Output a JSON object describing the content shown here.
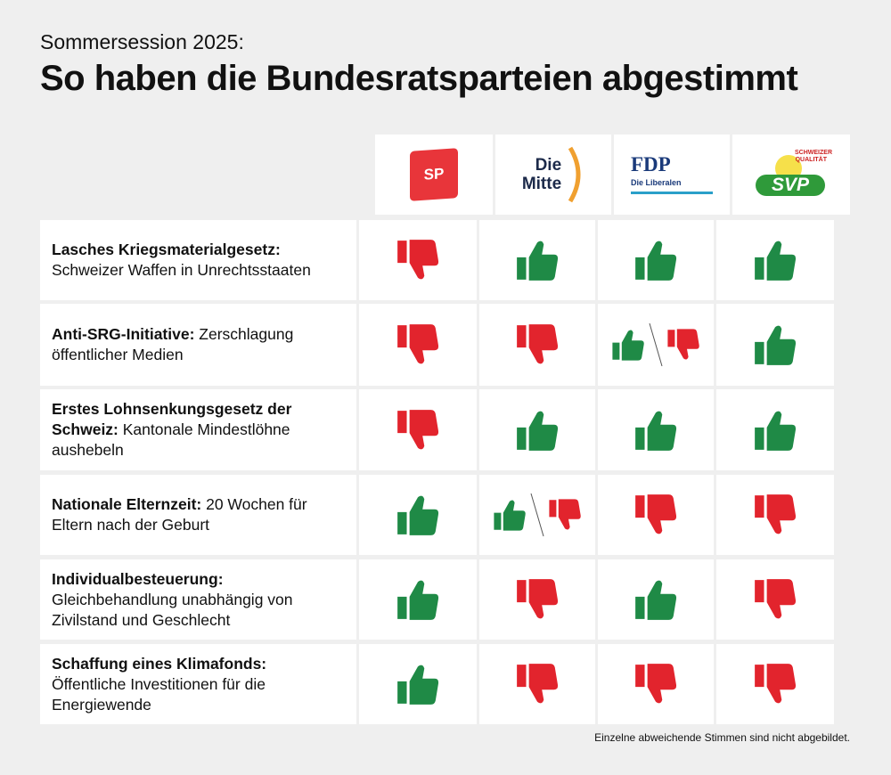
{
  "subtitle": "Sommersession 2025:",
  "title": "So haben die Bundesratsparteien abgestimmt",
  "parties": [
    {
      "name": "SP",
      "logo": "SP"
    },
    {
      "name": "Die Mitte",
      "logo_line1": "Die",
      "logo_line2": "Mitte"
    },
    {
      "name": "FDP",
      "logo": "FDP",
      "tagline": "Die Liberalen"
    },
    {
      "name": "SVP",
      "logo": "SVP",
      "tagline": "SCHWEIZER QUALITÄT"
    }
  ],
  "colors": {
    "yes": "#1f8a46",
    "no": "#e2242d",
    "sp": "#e8353a",
    "mitte_arc": "#f0a030",
    "fdp": "#1a3a7a",
    "fdp_line": "#2a9fc9",
    "svp": "#2f9a3a"
  },
  "rows": [
    {
      "bold": "Lasches Kriegsmaterialgesetz:",
      "text": " Schweizer Waffen in Unrechtsstaaten",
      "votes": [
        "no",
        "yes",
        "yes",
        "yes"
      ]
    },
    {
      "bold": "Anti-SRG-Initiative:",
      "text": " Zerschlagung öffentlicher Medien",
      "votes": [
        "no",
        "no",
        "split",
        "yes"
      ]
    },
    {
      "bold": "Erstes Lohnsenkungsgesetz der Schweiz:",
      "text": " Kantonale Mindestlöhne aushebeln",
      "votes": [
        "no",
        "yes",
        "yes",
        "yes"
      ]
    },
    {
      "bold": "Nationale Elternzeit:",
      "text": " 20 Wochen für Eltern nach der Geburt",
      "votes": [
        "yes",
        "split",
        "no",
        "no"
      ]
    },
    {
      "bold": "Individualbesteuerung:",
      "text": " Gleichbehandlung unabhängig von Zivilstand und Geschlecht",
      "votes": [
        "yes",
        "no",
        "yes",
        "no"
      ]
    },
    {
      "bold": "Schaffung eines Klimafonds:",
      "text": " Öffentliche Investitionen für die Energiewende",
      "votes": [
        "yes",
        "no",
        "no",
        "no"
      ]
    }
  ],
  "footnote": "Einzelne abweichende Stimmen sind nicht abgebildet."
}
